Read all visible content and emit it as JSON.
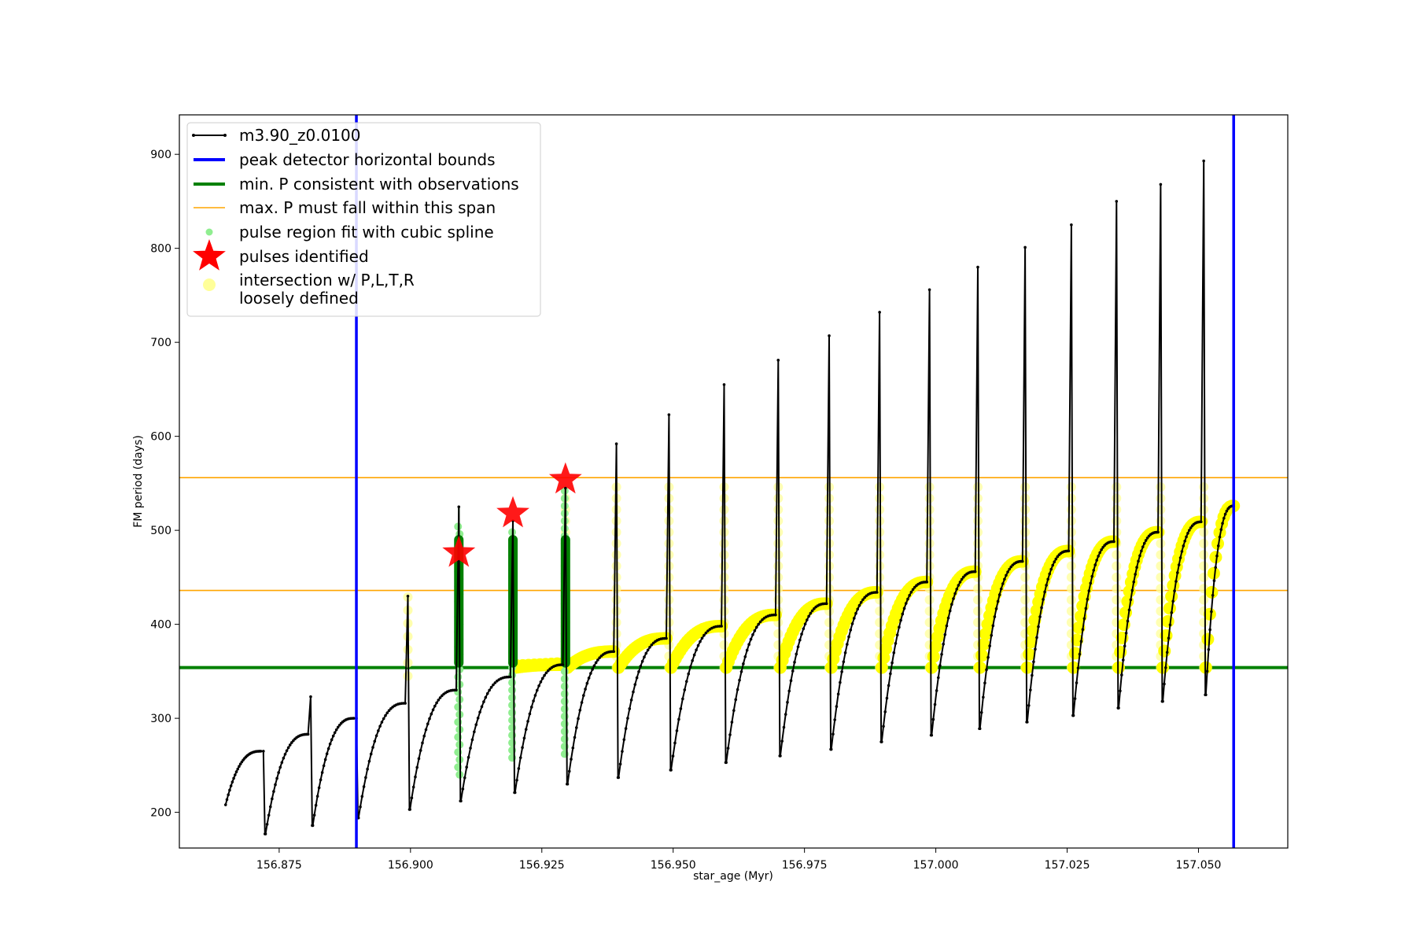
{
  "chart_data": {
    "type": "line",
    "title": "",
    "xlabel": "star_age (Myr)",
    "ylabel": "FM period (days)",
    "xlim": [
      156.856,
      157.067
    ],
    "ylim": [
      162,
      942
    ],
    "grid": false,
    "legend_position": "top-left",
    "xticks": [
      156.875,
      156.9,
      156.925,
      156.95,
      156.975,
      157.0,
      157.025,
      157.05
    ],
    "xtick_labels": [
      "156.875",
      "156.900",
      "156.925",
      "156.950",
      "156.975",
      "157.000",
      "157.025",
      "157.050"
    ],
    "yticks": [
      200,
      300,
      400,
      500,
      600,
      700,
      800,
      900
    ],
    "ytick_labels": [
      "200",
      "300",
      "400",
      "500",
      "600",
      "700",
      "800",
      "900"
    ],
    "legend": [
      {
        "label": "m3.90_z0.0100",
        "kind": "line-marker",
        "color": "#000000"
      },
      {
        "label": "peak detector horizontal bounds",
        "kind": "line",
        "color": "#0000ff"
      },
      {
        "label": "min. P consistent with observations",
        "kind": "line",
        "color": "#008000"
      },
      {
        "label": "max. P must fall within this span",
        "kind": "line",
        "color": "#ffa500"
      },
      {
        "label": "pulse region fit with cubic spline",
        "kind": "dot",
        "color": "#90ee90"
      },
      {
        "label": "pulses identified",
        "kind": "star",
        "color": "#ff0000"
      },
      {
        "label": "intersection w/ P,L,T,R",
        "label2": "loosely defined",
        "kind": "dot",
        "color": "#ffff99"
      }
    ],
    "model_series": {
      "name": "m3.90_z0.0100",
      "color": "#000000",
      "start": [
        156.8648,
        208
      ],
      "cycles": [
        {
          "peak_x": 156.872,
          "peak_y": 265,
          "spike": 265,
          "min": 177
        },
        {
          "peak_x": 156.881,
          "peak_y": 283,
          "spike": 323,
          "min": 186
        },
        {
          "peak_x": 156.8897,
          "peak_y": 300,
          "spike": 300,
          "min": 194
        },
        {
          "peak_x": 156.8995,
          "peak_y": 316,
          "spike": 430,
          "min": 203
        },
        {
          "peak_x": 156.9092,
          "peak_y": 330,
          "spike": 525,
          "min": 212
        },
        {
          "peak_x": 156.9195,
          "peak_y": 344,
          "spike": 510,
          "min": 221
        },
        {
          "peak_x": 156.9295,
          "peak_y": 357,
          "spike": 545,
          "min": 230
        },
        {
          "peak_x": 156.9392,
          "peak_y": 371,
          "spike": 592,
          "min": 237
        },
        {
          "peak_x": 156.9492,
          "peak_y": 385,
          "spike": 623,
          "min": 245
        },
        {
          "peak_x": 156.9597,
          "peak_y": 398,
          "spike": 655,
          "min": 253
        },
        {
          "peak_x": 156.97,
          "peak_y": 410,
          "spike": 681,
          "min": 260
        },
        {
          "peak_x": 156.9797,
          "peak_y": 422,
          "spike": 707,
          "min": 267
        },
        {
          "peak_x": 156.9893,
          "peak_y": 434,
          "spike": 732,
          "min": 275
        },
        {
          "peak_x": 156.9988,
          "peak_y": 445,
          "spike": 756,
          "min": 282
        },
        {
          "peak_x": 157.008,
          "peak_y": 456,
          "spike": 780,
          "min": 289
        },
        {
          "peak_x": 157.017,
          "peak_y": 467,
          "spike": 801,
          "min": 296
        },
        {
          "peak_x": 157.0258,
          "peak_y": 478,
          "spike": 825,
          "min": 303
        },
        {
          "peak_x": 157.0344,
          "peak_y": 488,
          "spike": 850,
          "min": 311
        },
        {
          "peak_x": 157.0428,
          "peak_y": 498,
          "spike": 868,
          "min": 318
        },
        {
          "peak_x": 157.051,
          "peak_y": 509,
          "spike": 893,
          "min": 325
        }
      ],
      "end": [
        157.0567,
        526
      ]
    },
    "peak_detector_bounds": {
      "x": [
        156.8897,
        157.0567
      ],
      "color": "#0000ff"
    },
    "min_P": {
      "y": 354,
      "color": "#008000"
    },
    "max_P_span": {
      "y": [
        436,
        556
      ],
      "color": "#ffa500"
    },
    "pulse_region_fits": {
      "color": "#90ee90",
      "regions": [
        {
          "x": 156.9092,
          "y_min": 240,
          "y_max": 505
        },
        {
          "x": 156.9195,
          "y_min": 258,
          "y_max": 505
        },
        {
          "x": 156.9295,
          "y_min": 262,
          "y_max": 545
        }
      ]
    },
    "green_pulse_columns": {
      "color": "#008000",
      "columns": [
        {
          "x": 156.9092,
          "y_min": 354,
          "y_max": 495,
          "spike": 525
        },
        {
          "x": 156.9195,
          "y_min": 354,
          "y_max": 495
        },
        {
          "x": 156.9295,
          "y_min": 354,
          "y_max": 495
        }
      ]
    },
    "pulses_identified": {
      "color": "#ff0000",
      "points": [
        {
          "x": 156.9092,
          "y": 476
        },
        {
          "x": 156.9195,
          "y": 518
        },
        {
          "x": 156.9295,
          "y": 554
        }
      ]
    },
    "intersection_color": "#ffff00",
    "intersection_light_color": "#ffff99"
  }
}
